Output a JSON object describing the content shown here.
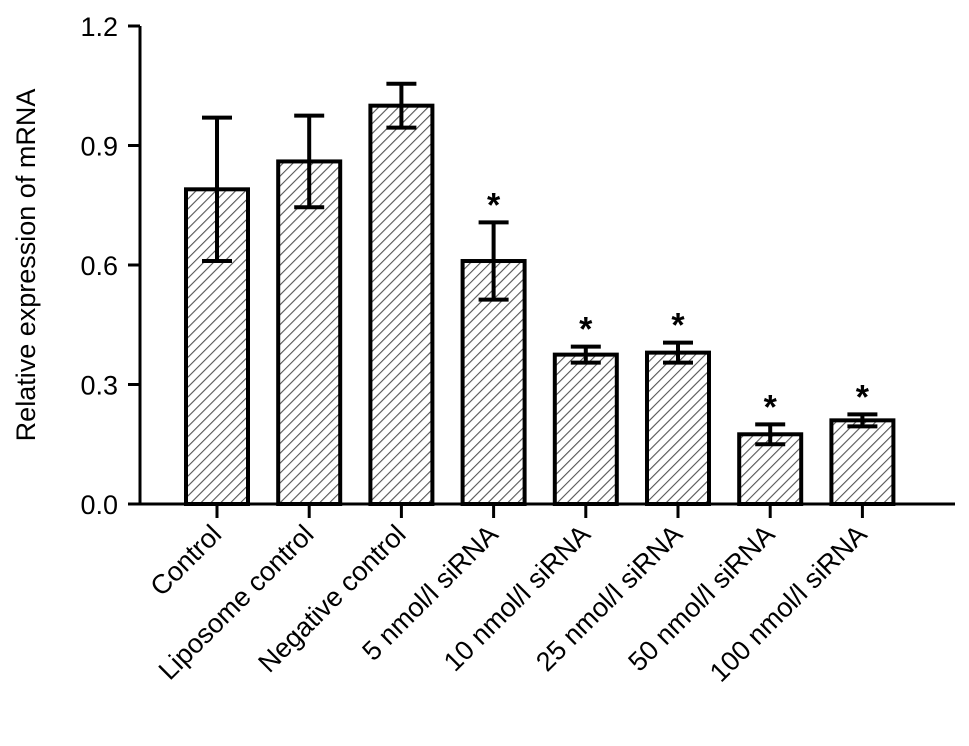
{
  "chart_data": {
    "type": "bar",
    "title": "",
    "xlabel": "",
    "ylabel": "Relative expression of mRNA",
    "ylim": [
      0,
      1.2
    ],
    "yticks": [
      "0.0",
      "0.3",
      "0.6",
      "0.9",
      "1.2"
    ],
    "grid": false,
    "bar_fill": "diagonal-hatch",
    "categories": [
      "Control",
      "Liposome control",
      "Negative control",
      "5 nmol/l siRNA",
      "10 nmol/l siRNA",
      "25 nmol/l siRNA",
      "50 nmol/l siRNA",
      "100 nmol/l siRNA"
    ],
    "values": [
      0.79,
      0.86,
      1.0,
      0.61,
      0.375,
      0.38,
      0.175,
      0.21
    ],
    "errors": [
      0.18,
      0.115,
      0.055,
      0.097,
      0.02,
      0.025,
      0.025,
      0.015
    ],
    "significance": [
      "",
      "",
      "",
      "*",
      "*",
      "*",
      "*",
      "*"
    ]
  }
}
